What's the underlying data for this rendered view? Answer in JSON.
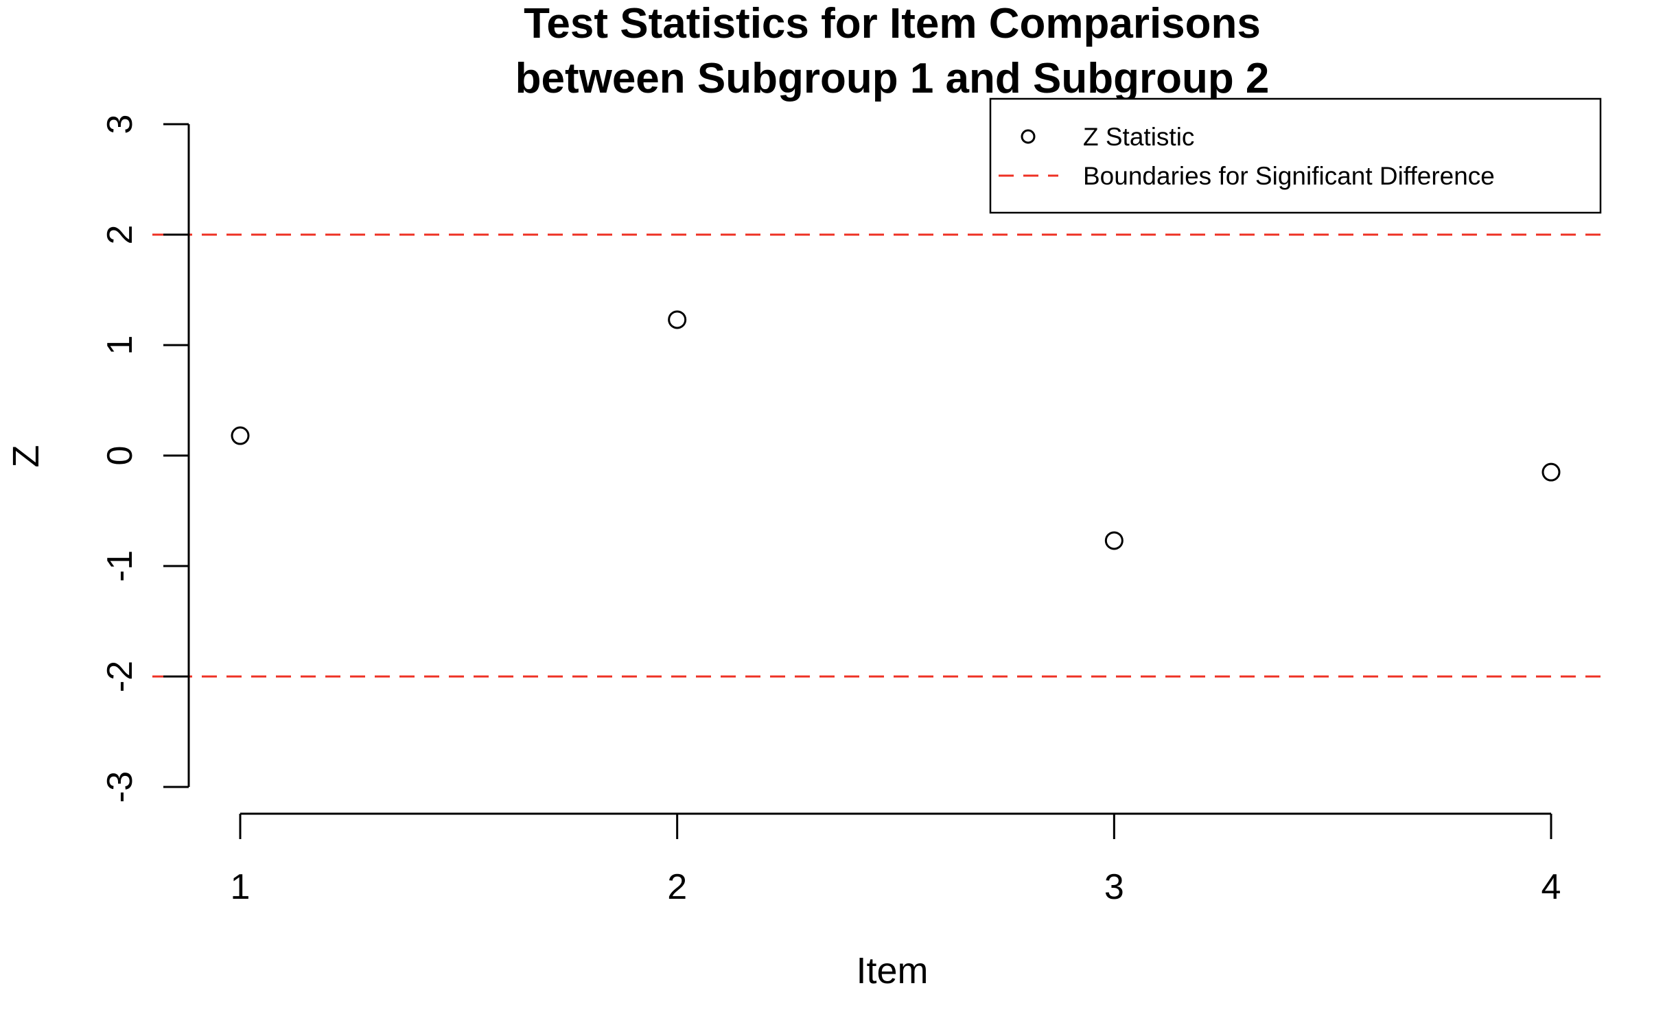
{
  "chart_data": {
    "type": "scatter",
    "title": [
      "Test Statistics for Item Comparisons",
      "between Subgroup 1 and Subgroup 2"
    ],
    "xlabel": "Item",
    "ylabel": "Z",
    "x": [
      1,
      2,
      3,
      4
    ],
    "series": [
      {
        "name": "Z Statistic",
        "x": [
          1,
          2,
          3,
          4
        ],
        "y": [
          0.18,
          1.23,
          -0.77,
          -0.15
        ]
      }
    ],
    "reference_lines": {
      "name": "Boundaries for Significant Difference",
      "y": [
        2,
        -2
      ],
      "color": "#ee3124",
      "style": "dashed"
    },
    "xlim": [
      1,
      4
    ],
    "ylim": [
      -3,
      3
    ],
    "xticks": [
      1,
      2,
      3,
      4
    ],
    "yticks": [
      -3,
      -2,
      -1,
      0,
      1,
      2,
      3
    ],
    "xtick_labels": [
      "1",
      "2",
      "3",
      "4"
    ],
    "ytick_labels": [
      "-3",
      "-2",
      "-1",
      "0",
      "1",
      "2",
      "3"
    ],
    "grid": false,
    "legend": {
      "position": "top-right",
      "entries": [
        "Z Statistic",
        "Boundaries for Significant Difference"
      ]
    }
  }
}
